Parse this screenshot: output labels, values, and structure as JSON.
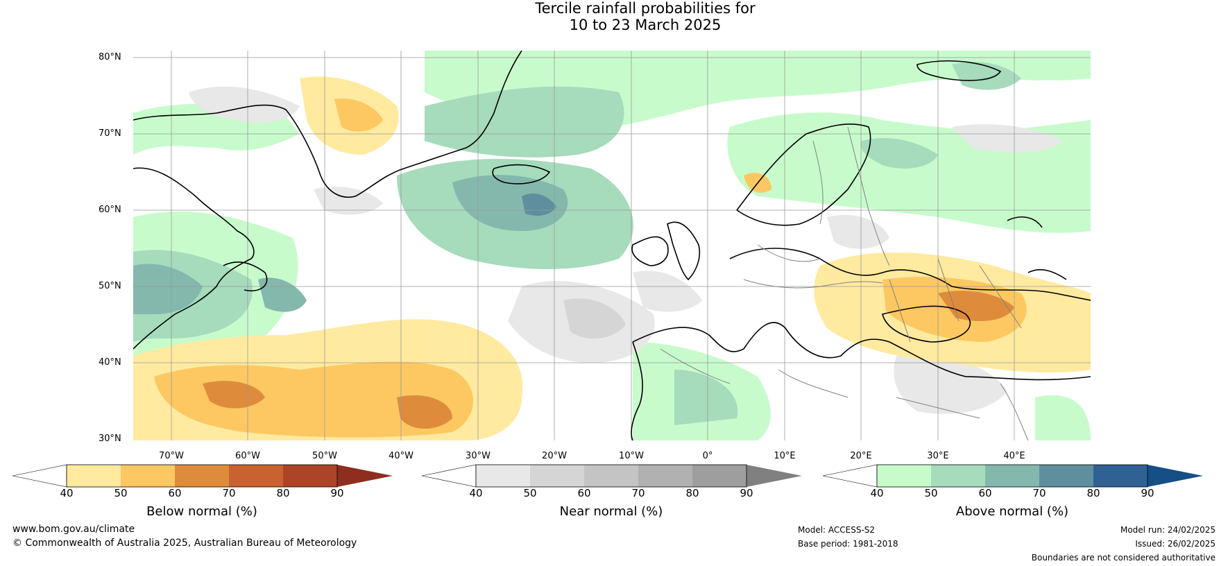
{
  "title": {
    "line1": "Tercile rainfall probabilities for",
    "line2": "10 to 23 March 2025"
  },
  "latitude_labels": [
    "80°N",
    "70°N",
    "60°N",
    "50°N",
    "40°N",
    "30°N"
  ],
  "longitude_labels": [
    "70°W",
    "60°W",
    "50°W",
    "40°W",
    "30°W",
    "20°W",
    "10°W",
    "0°",
    "10°E",
    "20°E",
    "30°E",
    "40°E"
  ],
  "colorbars": [
    {
      "label": "Below normal (%)",
      "ticks": [
        "40",
        "50",
        "60",
        "70",
        "80",
        "90"
      ],
      "colors": [
        "#ffffff",
        "#ffeaa0",
        "#fdc862",
        "#de8c3c",
        "#c96230",
        "#ad4428",
        "#8e2e1e"
      ]
    },
    {
      "label": "Near normal (%)",
      "ticks": [
        "40",
        "50",
        "60",
        "70",
        "80",
        "90"
      ],
      "colors": [
        "#ffffff",
        "#e8e8e8",
        "#d5d5d5",
        "#c4c4c4",
        "#b1b1b1",
        "#9e9e9e",
        "#808080"
      ]
    },
    {
      "label": "Above normal (%)",
      "ticks": [
        "40",
        "50",
        "60",
        "70",
        "80",
        "90"
      ],
      "colors": [
        "#ffffff",
        "#c8fbcc",
        "#a6dbbc",
        "#84b8ad",
        "#5f8f9e",
        "#2f6293",
        "#164e86"
      ]
    }
  ],
  "footer": {
    "website": "www.bom.gov.au/climate",
    "copyright": "© Commonwealth of Australia 2025, Australian Bureau of Meteorology",
    "model": "Model: ACCESS-S2",
    "base_period": "Base period: 1981-2018",
    "model_run": "Model run: 24/02/2025",
    "issued": "Issued: 26/02/2025",
    "disclaimer": "Boundaries are not considered authoritative"
  }
}
